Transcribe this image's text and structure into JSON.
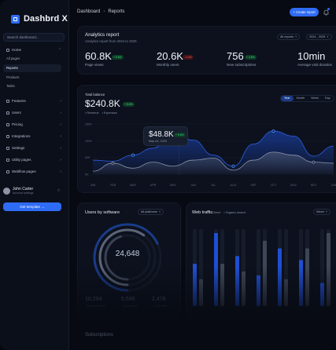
{
  "app": {
    "name": "Dashbrd X"
  },
  "sidebar": {
    "search_placeholder": "Search dashboard...",
    "home_label": "Home",
    "home_children": [
      "All pages",
      "Reports",
      "Products",
      "Tasks"
    ],
    "active_child": "Reports",
    "items": [
      "Features",
      "Users",
      "Pricing",
      "Integrations",
      "Settings",
      "Utility pages",
      "Webflow pages"
    ],
    "user": {
      "name": "John Carter",
      "role": "Account settings"
    },
    "cta_label": "Get template →"
  },
  "header": {
    "breadcrumb": [
      "Dashboard",
      "Reports"
    ],
    "create_label": "+ Create report"
  },
  "analytics": {
    "title": "Analytics report",
    "subtitle": "Analytics report from 2024 to 2025",
    "filter_reports": "All reports",
    "filter_range": "2024 - 2025",
    "kpis": [
      {
        "value": "60.8K",
        "badge": "+ 5.6%",
        "trend": "up",
        "label": "Page views"
      },
      {
        "value": "20.6K",
        "badge": "- 2.4%",
        "trend": "down",
        "label": "Monthly users"
      },
      {
        "value": "756",
        "badge": "+ 4.6%",
        "trend": "up",
        "label": "New subscriptions"
      },
      {
        "value": "10min",
        "badge": "",
        "trend": "up",
        "label": "Average visit duration"
      }
    ]
  },
  "balance": {
    "label": "Total balance",
    "value": "$240.8K",
    "badge": "+ 5.6%",
    "legend": [
      "Revenue",
      "Expenses"
    ],
    "ranges": [
      "Year",
      "Month",
      "Week",
      "Day"
    ],
    "active_range": "Year",
    "tooltip": {
      "value": "$48.8K",
      "badge": "+ 5.6%",
      "date": "May 04, 2025"
    },
    "colors": {
      "revenue": "#1f4fd1",
      "expenses": "#6c7489",
      "point": "#4d8bff"
    }
  },
  "chart_data": {
    "type": "area",
    "x": [
      "JAN",
      "FEB",
      "MAR",
      "APR",
      "MAY",
      "JUN",
      "JUL",
      "AUG",
      "SEP",
      "OCT",
      "NOV",
      "DEC",
      "JAN"
    ],
    "y_ticks": [
      "250K",
      "150K",
      "50K",
      "0K"
    ],
    "ylim": [
      0,
      250
    ],
    "series": [
      {
        "name": "Revenue",
        "values": [
          70,
          65,
          95,
          130,
          205,
          170,
          95,
          40,
          150,
          215,
          190,
          90,
          140
        ]
      },
      {
        "name": "Expenses",
        "values": [
          15,
          55,
          30,
          60,
          40,
          70,
          80,
          20,
          70,
          110,
          95,
          60,
          55
        ]
      }
    ]
  },
  "software": {
    "title": "Users by software",
    "filter": "All platforms",
    "total": "24,648",
    "ring_fraction": 0.68,
    "stats": [
      {
        "value": "10,264",
        "label": "Windows users"
      },
      {
        "value": "5,546",
        "label": "Apple users"
      },
      {
        "value": "2,478",
        "label": "Linux users"
      }
    ]
  },
  "traffic": {
    "title": "Web traffic",
    "legend": [
      "Direct",
      "Organic search"
    ],
    "filter": "Week",
    "bars": [
      {
        "direct": 0.55,
        "organic": 0.35
      },
      {
        "direct": 0.95,
        "organic": 0.55
      },
      {
        "direct": 0.65,
        "organic": 0.45
      },
      {
        "direct": 0.4,
        "organic": 0.85
      },
      {
        "direct": 0.75,
        "organic": 0.35
      },
      {
        "direct": 0.6,
        "organic": 0.75
      },
      {
        "direct": 0.3,
        "organic": 0.95
      }
    ]
  },
  "subscriptions": {
    "title": "Subscriptions"
  }
}
